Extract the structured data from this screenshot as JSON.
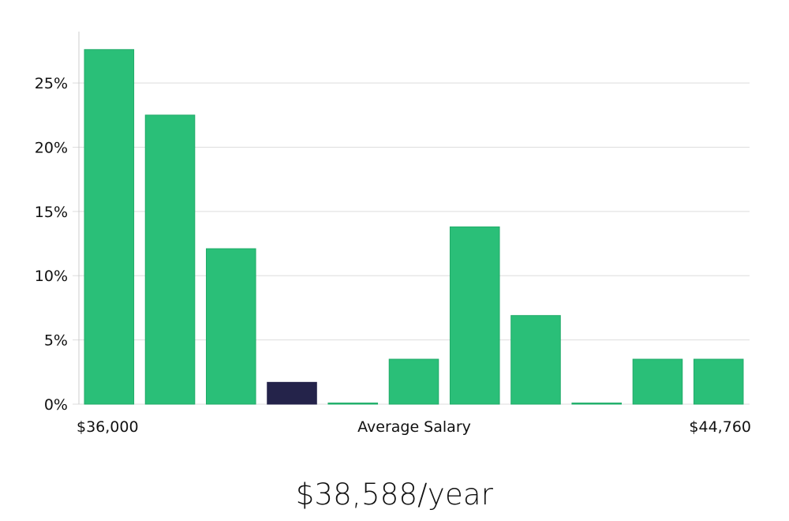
{
  "chart_data": {
    "type": "bar",
    "categories": [
      "1",
      "2",
      "3",
      "4",
      "5",
      "6",
      "7",
      "8",
      "9",
      "10",
      "11"
    ],
    "values": [
      27.6,
      22.5,
      12.1,
      1.7,
      0,
      3.5,
      13.8,
      6.9,
      0,
      3.5,
      3.5
    ],
    "highlight_index": 3,
    "y_ticks": [
      "0%",
      "5%",
      "10%",
      "15%",
      "20%",
      "25%"
    ],
    "ylim": [
      0,
      29
    ],
    "x_min_label": "$36,000",
    "x_center_label": "Average Salary",
    "x_max_label": "$44,760",
    "grid": true,
    "colors": {
      "bar": "#2abf78",
      "bar_border": "#21ab69",
      "highlight": "#24234a",
      "grid": "#dddddd",
      "axis": "#cccccc"
    }
  },
  "salary_label": "$38,588/year"
}
